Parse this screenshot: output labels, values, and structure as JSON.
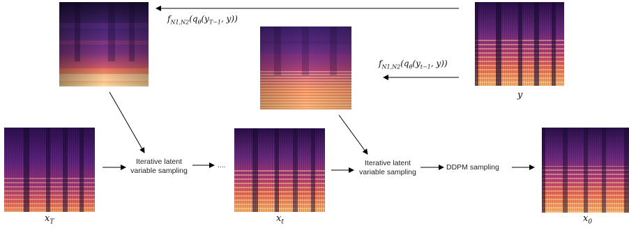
{
  "formulas": {
    "top": {
      "f": "f",
      "sub": "N1,N2",
      "open": "(",
      "q": "q",
      "qsub": "θ",
      "arg": "(y",
      "argsub": "T−1",
      "tail": ", y))"
    },
    "mid": {
      "f": "f",
      "sub": "N1,N2",
      "open": "(",
      "q": "q",
      "qsub": "θ",
      "arg": "(y",
      "argsub": "t−1",
      "tail": ", y))"
    }
  },
  "labels": {
    "y": "y",
    "xT": {
      "base": "x",
      "sub": "T"
    },
    "xt": {
      "base": "x",
      "sub": "t"
    },
    "x0": {
      "base": "x",
      "sub": "0"
    }
  },
  "steps": {
    "iterative_1": [
      "Iterative latent",
      "variable sampling"
    ],
    "ellipsis": "....",
    "iterative_2": [
      "Iterative latent",
      "variable sampling"
    ],
    "ddpm": "DDPM sampling"
  },
  "colors": {
    "magma_dark": "#150a2e",
    "magma_purple": "#5a2a82",
    "magma_magenta": "#b3377a",
    "magma_orange": "#f07a4a",
    "magma_yellow": "#fbe2a8",
    "arrow": "#000000"
  }
}
